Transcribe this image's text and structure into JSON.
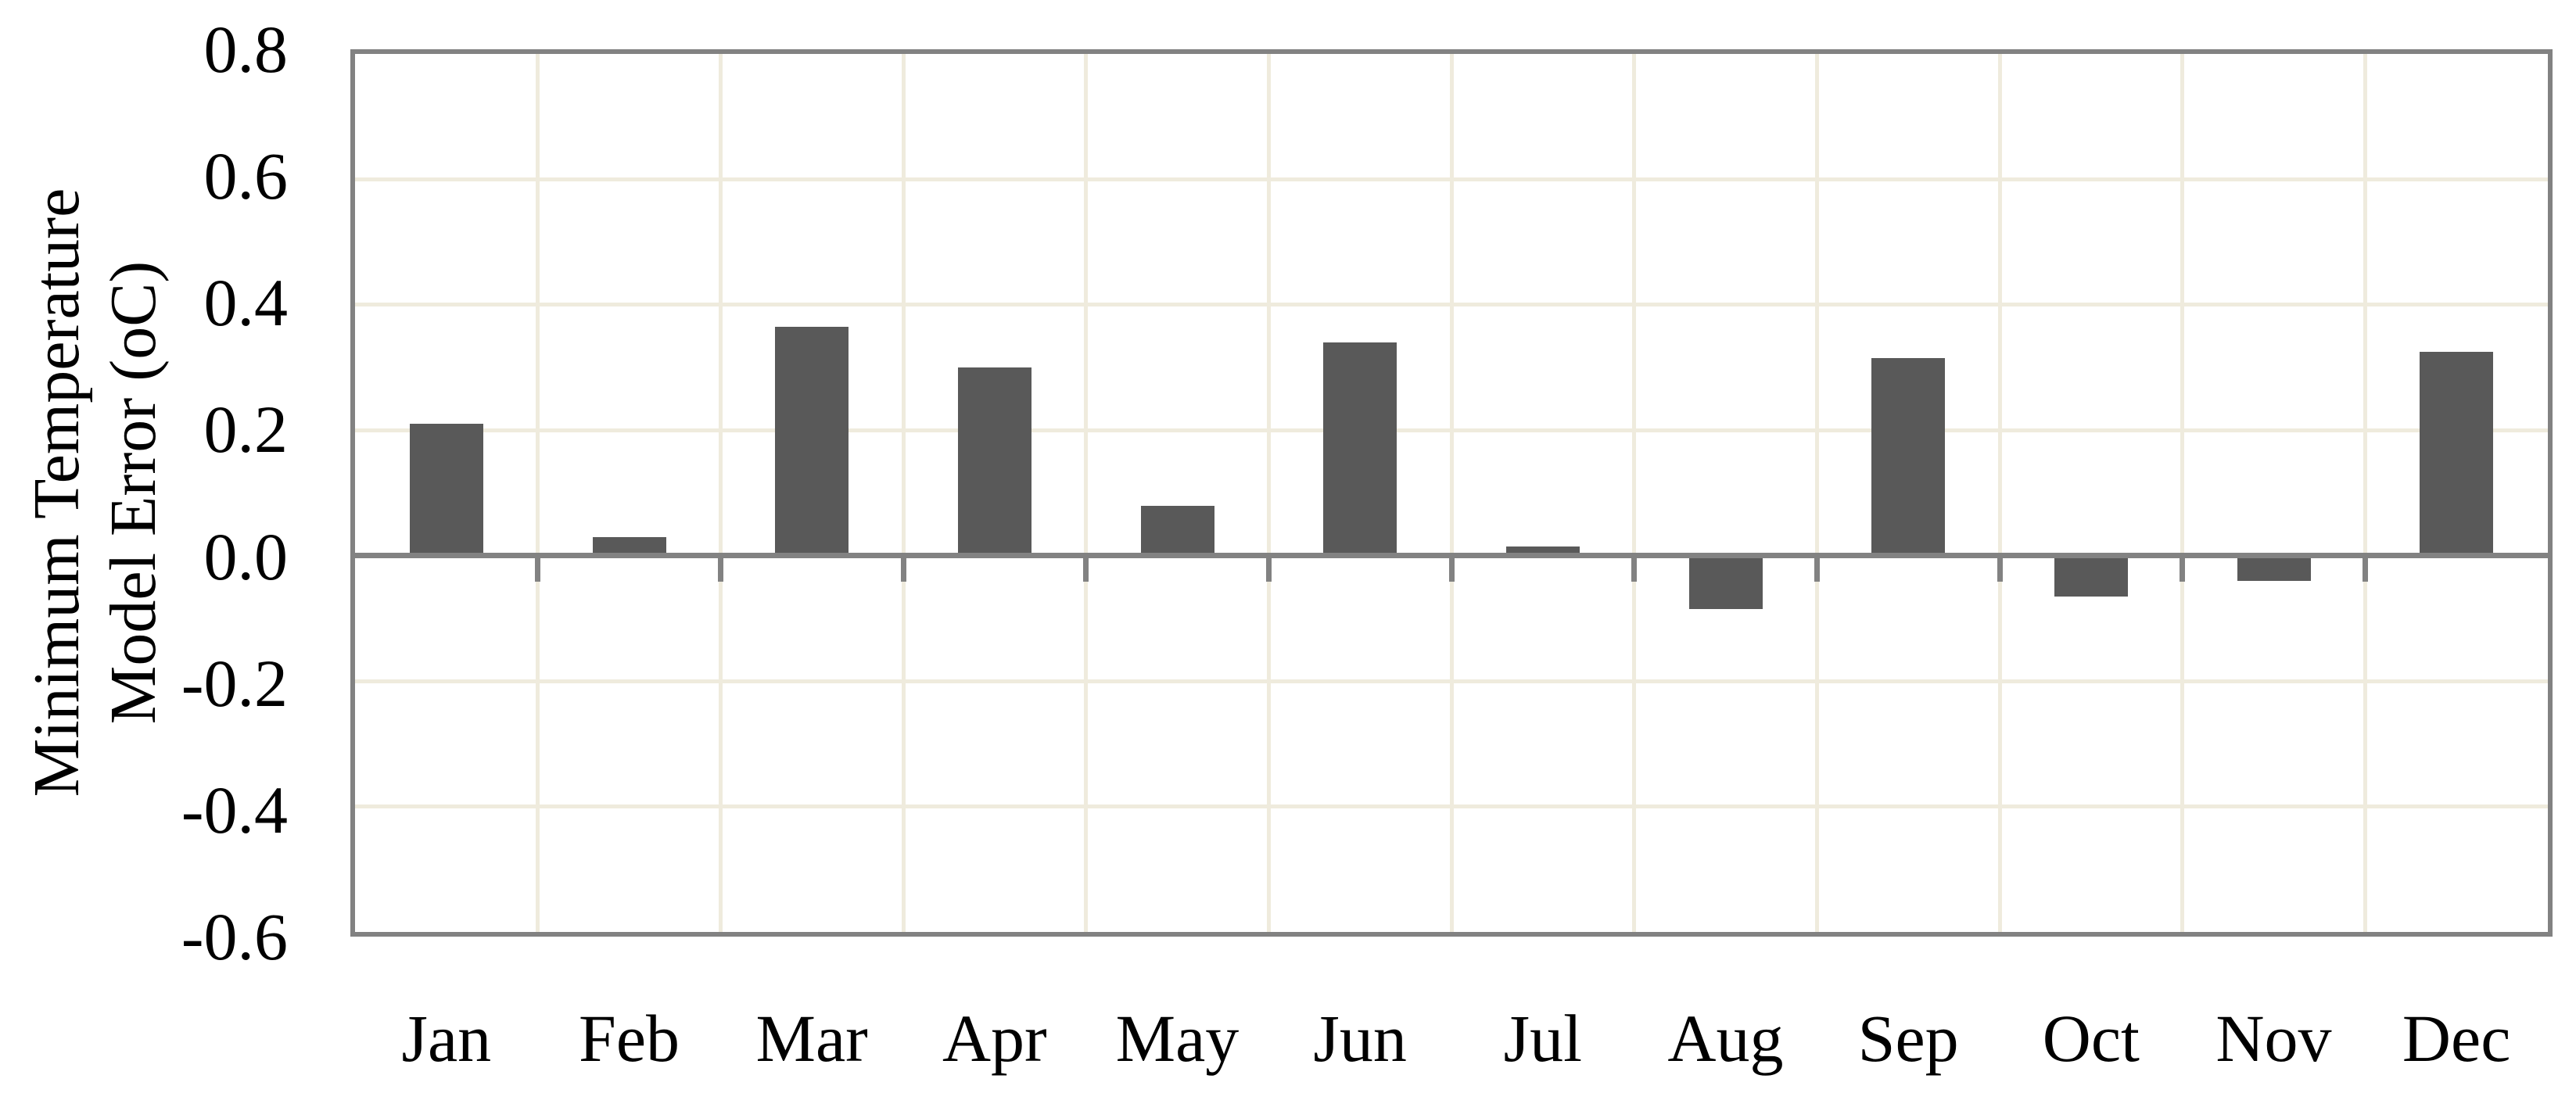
{
  "chart_data": {
    "type": "bar",
    "title": "",
    "categories": [
      "Jan",
      "Feb",
      "Mar",
      "Apr",
      "May",
      "Jun",
      "Jul",
      "Aug",
      "Sep",
      "Oct",
      "Nov",
      "Dec"
    ],
    "values": [
      0.21,
      0.03,
      0.365,
      0.3,
      0.08,
      0.34,
      0.015,
      -0.085,
      0.315,
      -0.065,
      -0.04,
      0.325
    ],
    "series_name": "Minimum Temperature Model Error",
    "xlabel": "",
    "ylabel": "Minimum Temperature Model Error (oC)",
    "ylabel_lines": [
      "Minimum Temperature",
      "Model Error (oC)"
    ],
    "ytick_labels": [
      "0.8",
      "0.6",
      "0.4",
      "0.2",
      "0.0",
      "-0.2",
      "-0.4",
      "-0.6"
    ],
    "ytick_values": [
      0.8,
      0.6,
      0.4,
      0.2,
      0.0,
      -0.2,
      -0.4,
      -0.6
    ],
    "ylim": [
      -0.6,
      0.8
    ],
    "grid": true,
    "legend_position": "none",
    "style": {
      "bar_color": "#595959",
      "axis_frame_color": "#828282",
      "gridline_color": "#efebdd",
      "background_color": "#ffffff",
      "text_color": "#000000"
    }
  }
}
